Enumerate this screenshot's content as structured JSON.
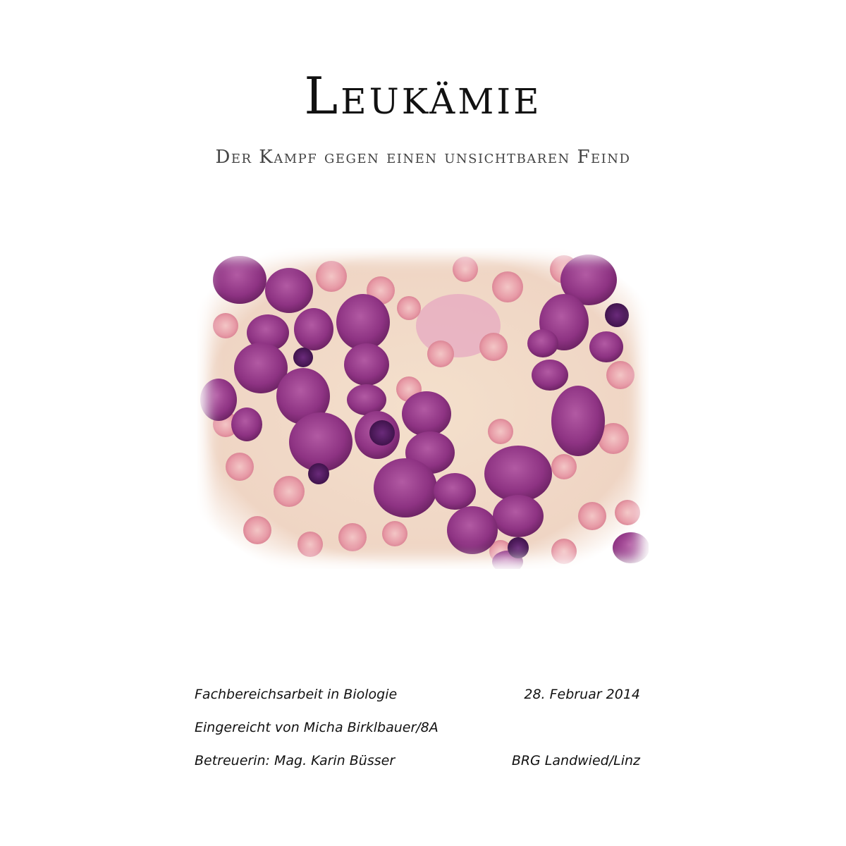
{
  "cover": {
    "title": "Leukämie",
    "subtitle": "Der Kampf gegen einen unsichtbaren Feind"
  },
  "image": {
    "icon": "blood-smear-micrograph",
    "background_color": "#f2dcc8",
    "cell_color": "#9b3c8e",
    "erythrocyte_color": "#eaa3ad"
  },
  "footer": {
    "row1_left": "Fachbereichsarbeit in Biologie",
    "row1_right": "28. Februar 2014",
    "row2_left": "Eingereicht von Micha Birklbauer/8A",
    "row3_left": "Betreuerin: Mag. Karin Büsser",
    "row3_right": "BRG Landwied/Linz"
  }
}
